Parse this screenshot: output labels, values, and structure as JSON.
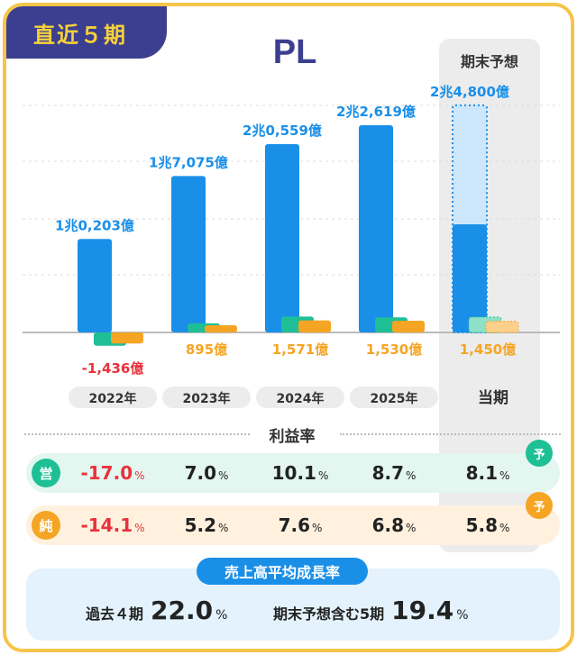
{
  "header": {
    "period_tag": "直近５期",
    "title": "PL"
  },
  "forecast_header": "期末予想",
  "chart_data": {
    "type": "bar",
    "title": "PL",
    "categories": [
      "2022年",
      "2023年",
      "2024年",
      "2025年",
      "当期"
    ],
    "forecast_category": "当期",
    "revenue": {
      "values": [
        10203,
        17075,
        20559,
        22619,
        24800
      ],
      "labels": [
        "1兆0,203億",
        "1兆7,075億",
        "2兆0,559億",
        "2兆2,619億",
        "2兆4,800億"
      ],
      "color": "#1a8fe8",
      "forecast_fill": "#cce6fb"
    },
    "operating_profit": {
      "values": [
        -1736,
        1195,
        2078,
        1968,
        2009
      ],
      "color": "#1fbf95"
    },
    "net_income": {
      "values": [
        -1436,
        895,
        1571,
        1530,
        1450
      ],
      "labels": [
        "-1,436億",
        "895億",
        "1,571億",
        "1,530億",
        "1,450億"
      ],
      "color": "#f5a523",
      "negative_label_color": "#e8323c"
    },
    "grid": true
  },
  "ratios": {
    "title": "利益率",
    "operating": {
      "label": "営",
      "values": [
        "-17.0",
        "7.0",
        "10.1",
        "8.7",
        "8.1"
      ],
      "forecast_badge": "予"
    },
    "net": {
      "label": "純",
      "values": [
        "-14.1",
        "5.2",
        "7.6",
        "6.8",
        "5.8"
      ],
      "forecast_badge": "予"
    },
    "unit": "%"
  },
  "growth": {
    "title": "売上高平均成長率",
    "past_label": "過去４期",
    "past_value": "22.0",
    "forecast_label": "期末予想含む5期",
    "forecast_value": "19.4",
    "unit": "%"
  }
}
